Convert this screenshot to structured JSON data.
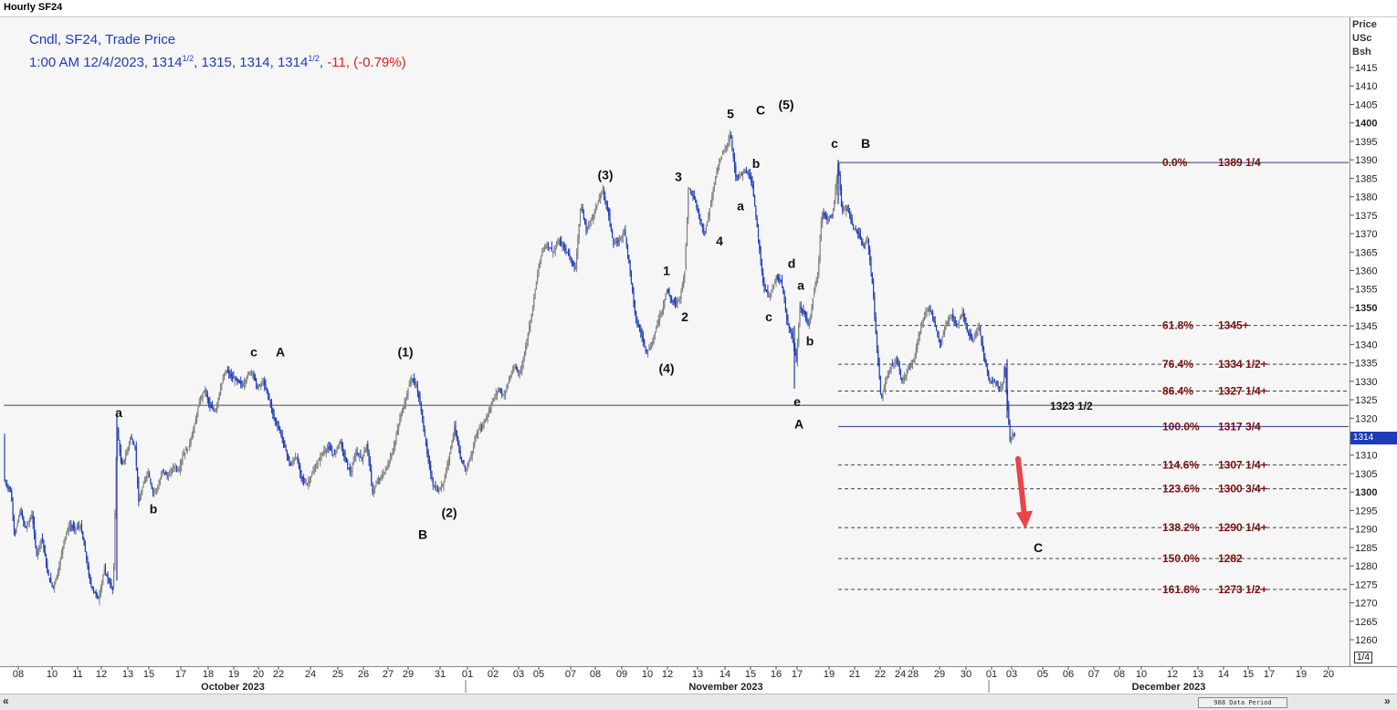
{
  "window": {
    "title": "Hourly SF24"
  },
  "legend": {
    "line1": "Cndl, SF24, Trade Price",
    "time": "1:00 AM 12/4/2023,",
    "open_int": "1314",
    "open_frac": "1/2",
    "high": "1315",
    "low": "1314",
    "close_int": "1314",
    "close_frac": "1/2",
    "change": "-11,",
    "change_pct": "(-0.79%)"
  },
  "price_axis": {
    "header": [
      "Price",
      "USc",
      "Bsh"
    ],
    "fraction_button": "1/4",
    "current_price_tag": "1314"
  },
  "scrollbar": {
    "left": "«",
    "right": "»",
    "data_period": "988 Data Period"
  },
  "colors": {
    "candles": "#1f3cb8",
    "fib_text": "#7a1010",
    "arrow": "#e84545",
    "legend": "#1f3cb8",
    "change": "#e02020"
  },
  "chart_data": {
    "type": "candlestick",
    "ylim": [
      1255,
      1418
    ],
    "y_ticks": [
      1260,
      1265,
      1270,
      1275,
      1280,
      1285,
      1290,
      1295,
      1300,
      1305,
      1310,
      1315,
      1320,
      1325,
      1330,
      1335,
      1340,
      1345,
      1350,
      1355,
      1360,
      1365,
      1370,
      1375,
      1380,
      1385,
      1390,
      1395,
      1400,
      1405,
      1410,
      1415
    ],
    "y_bold_ticks": [
      1300,
      1350,
      1400
    ],
    "x_ticks": [
      {
        "label": "08",
        "x": 20
      },
      {
        "label": "10",
        "x": 57
      },
      {
        "label": "11",
        "x": 85
      },
      {
        "label": "12",
        "x": 111
      },
      {
        "label": "13",
        "x": 140
      },
      {
        "label": "15",
        "x": 163
      },
      {
        "label": "17",
        "x": 198
      },
      {
        "label": "18",
        "x": 228
      },
      {
        "label": "19",
        "x": 256
      },
      {
        "label": "20",
        "x": 283
      },
      {
        "label": "22",
        "x": 305
      },
      {
        "label": "24",
        "x": 340
      },
      {
        "label": "25",
        "x": 370
      },
      {
        "label": "26",
        "x": 398
      },
      {
        "label": "27",
        "x": 425
      },
      {
        "label": "29",
        "x": 447
      },
      {
        "label": "31",
        "x": 482
      },
      {
        "label": "01",
        "x": 512
      },
      {
        "label": "02",
        "x": 540
      },
      {
        "label": "03",
        "x": 568
      },
      {
        "label": "05",
        "x": 590
      },
      {
        "label": "07",
        "x": 625
      },
      {
        "label": "08",
        "x": 652
      },
      {
        "label": "09",
        "x": 681
      },
      {
        "label": "10",
        "x": 709
      },
      {
        "label": "12",
        "x": 731
      },
      {
        "label": "13",
        "x": 764
      },
      {
        "label": "14",
        "x": 794
      },
      {
        "label": "15",
        "x": 822
      },
      {
        "label": "16",
        "x": 850
      },
      {
        "label": "17",
        "x": 873
      },
      {
        "label": "19",
        "x": 908
      },
      {
        "label": "21",
        "x": 936
      },
      {
        "label": "22",
        "x": 964
      },
      {
        "label": "24",
        "x": 986
      },
      {
        "label": "28",
        "x": 1000
      },
      {
        "label": "29",
        "x": 1029
      },
      {
        "label": "30",
        "x": 1058
      },
      {
        "label": "01",
        "x": 1086
      },
      {
        "label": "03",
        "x": 1108
      },
      {
        "label": "05",
        "x": 1142
      },
      {
        "label": "06",
        "x": 1170
      },
      {
        "label": "07",
        "x": 1198
      },
      {
        "label": "08",
        "x": 1226
      },
      {
        "label": "10",
        "x": 1250
      },
      {
        "label": "12",
        "x": 1284
      },
      {
        "label": "13",
        "x": 1312
      },
      {
        "label": "14",
        "x": 1340
      },
      {
        "label": "15",
        "x": 1367
      },
      {
        "label": "17",
        "x": 1390
      },
      {
        "label": "19",
        "x": 1425
      },
      {
        "label": "20",
        "x": 1455
      }
    ],
    "months": [
      {
        "label": "October 2023",
        "x": 255
      },
      {
        "label": "November 2023",
        "x": 795
      },
      {
        "label": "December 2023",
        "x": 1280
      }
    ],
    "horizontal_line": {
      "value": 1323.5,
      "label": "1323 1/2"
    },
    "fib_levels": [
      {
        "pct": "0.0%",
        "price": "1389 1/4",
        "value": 1389.25,
        "style": "solid"
      },
      {
        "pct": "61.8%",
        "price": "1345+",
        "value": 1345.125,
        "style": "dashed"
      },
      {
        "pct": "76.4%",
        "price": "1334 1/2+",
        "value": 1334.625,
        "style": "dashed"
      },
      {
        "pct": "86.4%",
        "price": "1327 1/4+",
        "value": 1327.375,
        "style": "dashed"
      },
      {
        "pct": "100.0%",
        "price": "1317 3/4",
        "value": 1317.75,
        "style": "solid"
      },
      {
        "pct": "114.6%",
        "price": "1307 1/4+",
        "value": 1307.375,
        "style": "dashed"
      },
      {
        "pct": "123.6%",
        "price": "1300 3/4+",
        "value": 1300.875,
        "style": "dashed"
      },
      {
        "pct": "138.2%",
        "price": "1290 1/4+",
        "value": 1290.375,
        "style": "dashed"
      },
      {
        "pct": "150.0%",
        "price": "1282",
        "value": 1282,
        "style": "dashed"
      },
      {
        "pct": "161.8%",
        "price": "1273 1/2+",
        "value": 1273.625,
        "style": "dashed"
      }
    ],
    "price_path": [
      [
        5,
        1303
      ],
      [
        12,
        1300
      ],
      [
        16,
        1288
      ],
      [
        22,
        1295
      ],
      [
        28,
        1290
      ],
      [
        35,
        1294
      ],
      [
        40,
        1283
      ],
      [
        46,
        1288
      ],
      [
        52,
        1278
      ],
      [
        58,
        1274
      ],
      [
        64,
        1279
      ],
      [
        70,
        1287
      ],
      [
        76,
        1291
      ],
      [
        82,
        1290
      ],
      [
        88,
        1291
      ],
      [
        94,
        1283
      ],
      [
        98,
        1276
      ],
      [
        103,
        1273
      ],
      [
        108,
        1271
      ],
      [
        114,
        1279
      ],
      [
        119,
        1276
      ],
      [
        124,
        1273
      ],
      [
        128,
        1318
      ],
      [
        133,
        1307
      ],
      [
        138,
        1310
      ],
      [
        143,
        1315
      ],
      [
        148,
        1312
      ],
      [
        152,
        1297
      ],
      [
        157,
        1302
      ],
      [
        162,
        1306
      ],
      [
        167,
        1300
      ],
      [
        173,
        1301
      ],
      [
        178,
        1306
      ],
      [
        184,
        1304
      ],
      [
        190,
        1307
      ],
      [
        196,
        1306
      ],
      [
        200,
        1310
      ],
      [
        206,
        1312
      ],
      [
        212,
        1317
      ],
      [
        218,
        1324
      ],
      [
        224,
        1328
      ],
      [
        230,
        1323
      ],
      [
        236,
        1322
      ],
      [
        242,
        1329
      ],
      [
        248,
        1333
      ],
      [
        254,
        1331
      ],
      [
        260,
        1330
      ],
      [
        266,
        1329
      ],
      [
        272,
        1332
      ],
      [
        276,
        1333
      ],
      [
        282,
        1328
      ],
      [
        288,
        1330
      ],
      [
        294,
        1326
      ],
      [
        300,
        1320
      ],
      [
        306,
        1317
      ],
      [
        312,
        1312
      ],
      [
        318,
        1307
      ],
      [
        324,
        1310
      ],
      [
        330,
        1304
      ],
      [
        336,
        1302
      ],
      [
        342,
        1305
      ],
      [
        348,
        1308
      ],
      [
        354,
        1311
      ],
      [
        360,
        1312
      ],
      [
        366,
        1310
      ],
      [
        372,
        1314
      ],
      [
        378,
        1309
      ],
      [
        384,
        1305
      ],
      [
        390,
        1311
      ],
      [
        396,
        1309
      ],
      [
        402,
        1313
      ],
      [
        408,
        1300
      ],
      [
        414,
        1303
      ],
      [
        420,
        1305
      ],
      [
        426,
        1308
      ],
      [
        432,
        1313
      ],
      [
        438,
        1320
      ],
      [
        444,
        1325
      ],
      [
        450,
        1331
      ],
      [
        456,
        1329
      ],
      [
        462,
        1321
      ],
      [
        468,
        1310
      ],
      [
        474,
        1302
      ],
      [
        480,
        1300
      ],
      [
        486,
        1303
      ],
      [
        492,
        1310
      ],
      [
        498,
        1318
      ],
      [
        504,
        1309
      ],
      [
        510,
        1306
      ],
      [
        516,
        1310
      ],
      [
        522,
        1316
      ],
      [
        528,
        1318
      ],
      [
        534,
        1321
      ],
      [
        540,
        1325
      ],
      [
        546,
        1328
      ],
      [
        552,
        1326
      ],
      [
        558,
        1331
      ],
      [
        564,
        1334
      ],
      [
        570,
        1332
      ],
      [
        576,
        1340
      ],
      [
        582,
        1348
      ],
      [
        588,
        1358
      ],
      [
        594,
        1366
      ],
      [
        600,
        1367
      ],
      [
        606,
        1365
      ],
      [
        612,
        1368
      ],
      [
        618,
        1366
      ],
      [
        624,
        1364
      ],
      [
        630,
        1360
      ],
      [
        636,
        1378
      ],
      [
        642,
        1371
      ],
      [
        648,
        1374
      ],
      [
        654,
        1378
      ],
      [
        660,
        1382
      ],
      [
        666,
        1376
      ],
      [
        672,
        1367
      ],
      [
        678,
        1368
      ],
      [
        684,
        1371
      ],
      [
        690,
        1360
      ],
      [
        696,
        1347
      ],
      [
        702,
        1343
      ],
      [
        708,
        1338
      ],
      [
        714,
        1340
      ],
      [
        720,
        1346
      ],
      [
        726,
        1350
      ],
      [
        730,
        1355
      ],
      [
        735,
        1352
      ],
      [
        740,
        1351
      ],
      [
        745,
        1353
      ],
      [
        750,
        1360
      ],
      [
        754,
        1383
      ],
      [
        760,
        1380
      ],
      [
        766,
        1374
      ],
      [
        772,
        1370
      ],
      [
        778,
        1378
      ],
      [
        784,
        1386
      ],
      [
        790,
        1391
      ],
      [
        796,
        1394
      ],
      [
        800,
        1397
      ],
      [
        806,
        1385
      ],
      [
        812,
        1386
      ],
      [
        818,
        1387
      ],
      [
        824,
        1383
      ],
      [
        830,
        1370
      ],
      [
        836,
        1356
      ],
      [
        842,
        1353
      ],
      [
        846,
        1355
      ],
      [
        850,
        1358
      ],
      [
        856,
        1357
      ],
      [
        862,
        1346
      ],
      [
        868,
        1342
      ],
      [
        872,
        1335
      ],
      [
        876,
        1350
      ],
      [
        882,
        1348
      ],
      [
        886,
        1345
      ],
      [
        890,
        1352
      ],
      [
        896,
        1360
      ],
      [
        900,
        1376
      ],
      [
        906,
        1374
      ],
      [
        912,
        1375
      ],
      [
        918,
        1389
      ],
      [
        922,
        1376
      ],
      [
        928,
        1377
      ],
      [
        934,
        1372
      ],
      [
        940,
        1370
      ],
      [
        946,
        1366
      ],
      [
        950,
        1369
      ],
      [
        956,
        1355
      ],
      [
        960,
        1340
      ],
      [
        965,
        1325
      ],
      [
        970,
        1330
      ],
      [
        976,
        1334
      ],
      [
        982,
        1336
      ],
      [
        988,
        1330
      ],
      [
        994,
        1333
      ],
      [
        1000,
        1335
      ],
      [
        1006,
        1342
      ],
      [
        1012,
        1348
      ],
      [
        1018,
        1350
      ],
      [
        1024,
        1345
      ],
      [
        1030,
        1340
      ],
      [
        1036,
        1346
      ],
      [
        1042,
        1348
      ],
      [
        1048,
        1345
      ],
      [
        1054,
        1349
      ],
      [
        1060,
        1343
      ],
      [
        1066,
        1341
      ],
      [
        1072,
        1345
      ],
      [
        1078,
        1336
      ],
      [
        1084,
        1330
      ],
      [
        1090,
        1330
      ],
      [
        1094,
        1328
      ],
      [
        1098,
        1329
      ],
      [
        1100,
        1335
      ],
      [
        1103,
        1325
      ],
      [
        1106,
        1314
      ],
      [
        1109,
        1316
      ],
      [
        1112,
        1315
      ]
    ],
    "wave_labels": [
      {
        "t": "a",
        "x": 130,
        "v": 1321.5
      },
      {
        "t": "b",
        "x": 168,
        "v": 1295.5
      },
      {
        "t": "c",
        "x": 278,
        "v": 1338
      },
      {
        "t": "A",
        "x": 307,
        "v": 1338
      },
      {
        "t": "(1)",
        "x": 444,
        "v": 1338
      },
      {
        "t": "B",
        "x": 463,
        "v": 1288.5
      },
      {
        "t": "(2)",
        "x": 492,
        "v": 1294.5
      },
      {
        "t": "(3)",
        "x": 663,
        "v": 1386
      },
      {
        "t": "1",
        "x": 730,
        "v": 1360
      },
      {
        "t": "2",
        "x": 750,
        "v": 1347.5
      },
      {
        "t": "(4)",
        "x": 730,
        "v": 1333.5
      },
      {
        "t": "3",
        "x": 743,
        "v": 1385.5
      },
      {
        "t": "4",
        "x": 788,
        "v": 1368
      },
      {
        "t": "5",
        "x": 800,
        "v": 1402.5
      },
      {
        "t": "C",
        "x": 833,
        "v": 1403.5
      },
      {
        "t": "(5)",
        "x": 861,
        "v": 1405
      },
      {
        "t": "a",
        "x": 811,
        "v": 1377.5
      },
      {
        "t": "b",
        "x": 828,
        "v": 1389
      },
      {
        "t": "c",
        "x": 842,
        "v": 1347.5
      },
      {
        "t": "d",
        "x": 867,
        "v": 1362
      },
      {
        "t": "a",
        "x": 877,
        "v": 1356
      },
      {
        "t": "b",
        "x": 887,
        "v": 1341
      },
      {
        "t": "e",
        "x": 873,
        "v": 1324.5
      },
      {
        "t": "A",
        "x": 875,
        "v": 1318.5
      },
      {
        "t": "c",
        "x": 914,
        "v": 1394.5
      },
      {
        "t": "B",
        "x": 948,
        "v": 1394.5
      },
      {
        "t": "C",
        "x": 1137,
        "v": 1285
      }
    ],
    "arrow": {
      "x1": 1115,
      "v1": 1309,
      "x2": 1122,
      "v2": 1291
    }
  }
}
